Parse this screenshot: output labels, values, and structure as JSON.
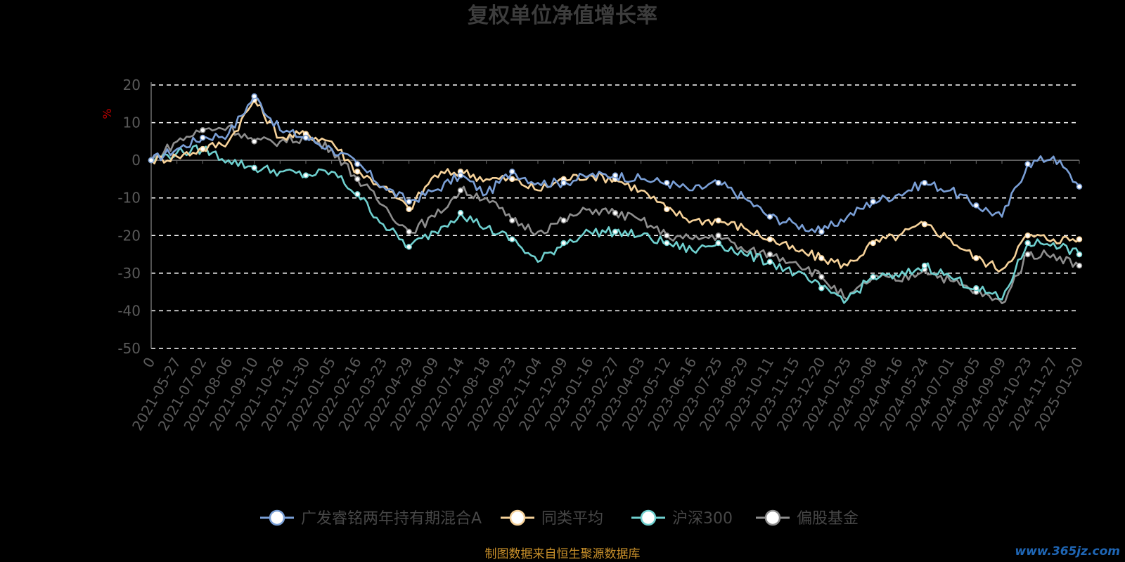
{
  "chart_data": {
    "type": "line",
    "title": "复权单位净值增长率",
    "ylabel": "%",
    "ylim": [
      -50,
      20
    ],
    "yticks": [
      20,
      10,
      0,
      -10,
      -20,
      -30,
      -40,
      -50
    ],
    "grid": true,
    "legend_placement": "bottom",
    "x": [
      "0",
      "2021-05-27",
      "2021-07-02",
      "2021-08-06",
      "2021-09-10",
      "2021-10-26",
      "2021-11-30",
      "2022-01-05",
      "2022-02-16",
      "2022-03-23",
      "2022-04-29",
      "2022-06-09",
      "2022-07-14",
      "2022-08-18",
      "2022-09-23",
      "2022-11-04",
      "2022-12-09",
      "2023-01-16",
      "2023-02-27",
      "2023-04-03",
      "2023-05-12",
      "2023-06-16",
      "2023-07-25",
      "2023-08-29",
      "2023-10-11",
      "2023-11-15",
      "2023-12-20",
      "2024-01-25",
      "2024-03-08",
      "2024-04-16",
      "2024-05-24",
      "2024-07-01",
      "2024-08-05",
      "2024-09-09",
      "2024-10-23",
      "2024-11-27",
      "2025-01-20"
    ],
    "series": [
      {
        "name": "广发睿铭两年持有期混合A",
        "color": "#7a9fd6",
        "values": [
          0,
          3,
          6,
          7,
          17,
          8,
          6,
          3,
          -1,
          -7,
          -11,
          -8,
          -4,
          -9,
          -3,
          -6,
          -6,
          -4,
          -4,
          -5,
          -6,
          -8,
          -6,
          -10,
          -15,
          -17,
          -19,
          -15,
          -11,
          -9,
          -6,
          -8,
          -12,
          -15,
          -1,
          1,
          -7
        ]
      },
      {
        "name": "同类平均",
        "color": "#f6d29a",
        "values": [
          0,
          1,
          3,
          5,
          16,
          6,
          7,
          5,
          -3,
          -7,
          -13,
          -4,
          -3,
          -5,
          -5,
          -8,
          -5,
          -4,
          -5,
          -8,
          -13,
          -16,
          -16,
          -18,
          -21,
          -24,
          -26,
          -28,
          -22,
          -20,
          -17,
          -21,
          -26,
          -29,
          -20,
          -21,
          -21
        ]
      },
      {
        "name": "沪深300",
        "color": "#6fd0cf",
        "values": [
          0,
          2,
          3,
          0,
          -2,
          -3,
          -4,
          -3,
          -9,
          -17,
          -23,
          -19,
          -14,
          -18,
          -21,
          -27,
          -22,
          -19,
          -19,
          -20,
          -22,
          -24,
          -22,
          -25,
          -27,
          -30,
          -34,
          -37,
          -31,
          -31,
          -28,
          -31,
          -34,
          -37,
          -22,
          -22,
          -25
        ]
      },
      {
        "name": "偏股基金",
        "color": "#8e8e8e",
        "values": [
          0,
          5,
          8,
          9,
          5,
          5,
          6,
          3,
          -5,
          -12,
          -19,
          -15,
          -8,
          -10,
          -16,
          -19,
          -16,
          -13,
          -14,
          -16,
          -20,
          -21,
          -20,
          -24,
          -25,
          -27,
          -31,
          -37,
          -31,
          -32,
          -29,
          -32,
          -35,
          -38,
          -25,
          -25,
          -28
        ]
      }
    ]
  },
  "footer": {
    "source": "制图数据来自恒生聚源数据库",
    "watermark": "www.365jz.com"
  }
}
